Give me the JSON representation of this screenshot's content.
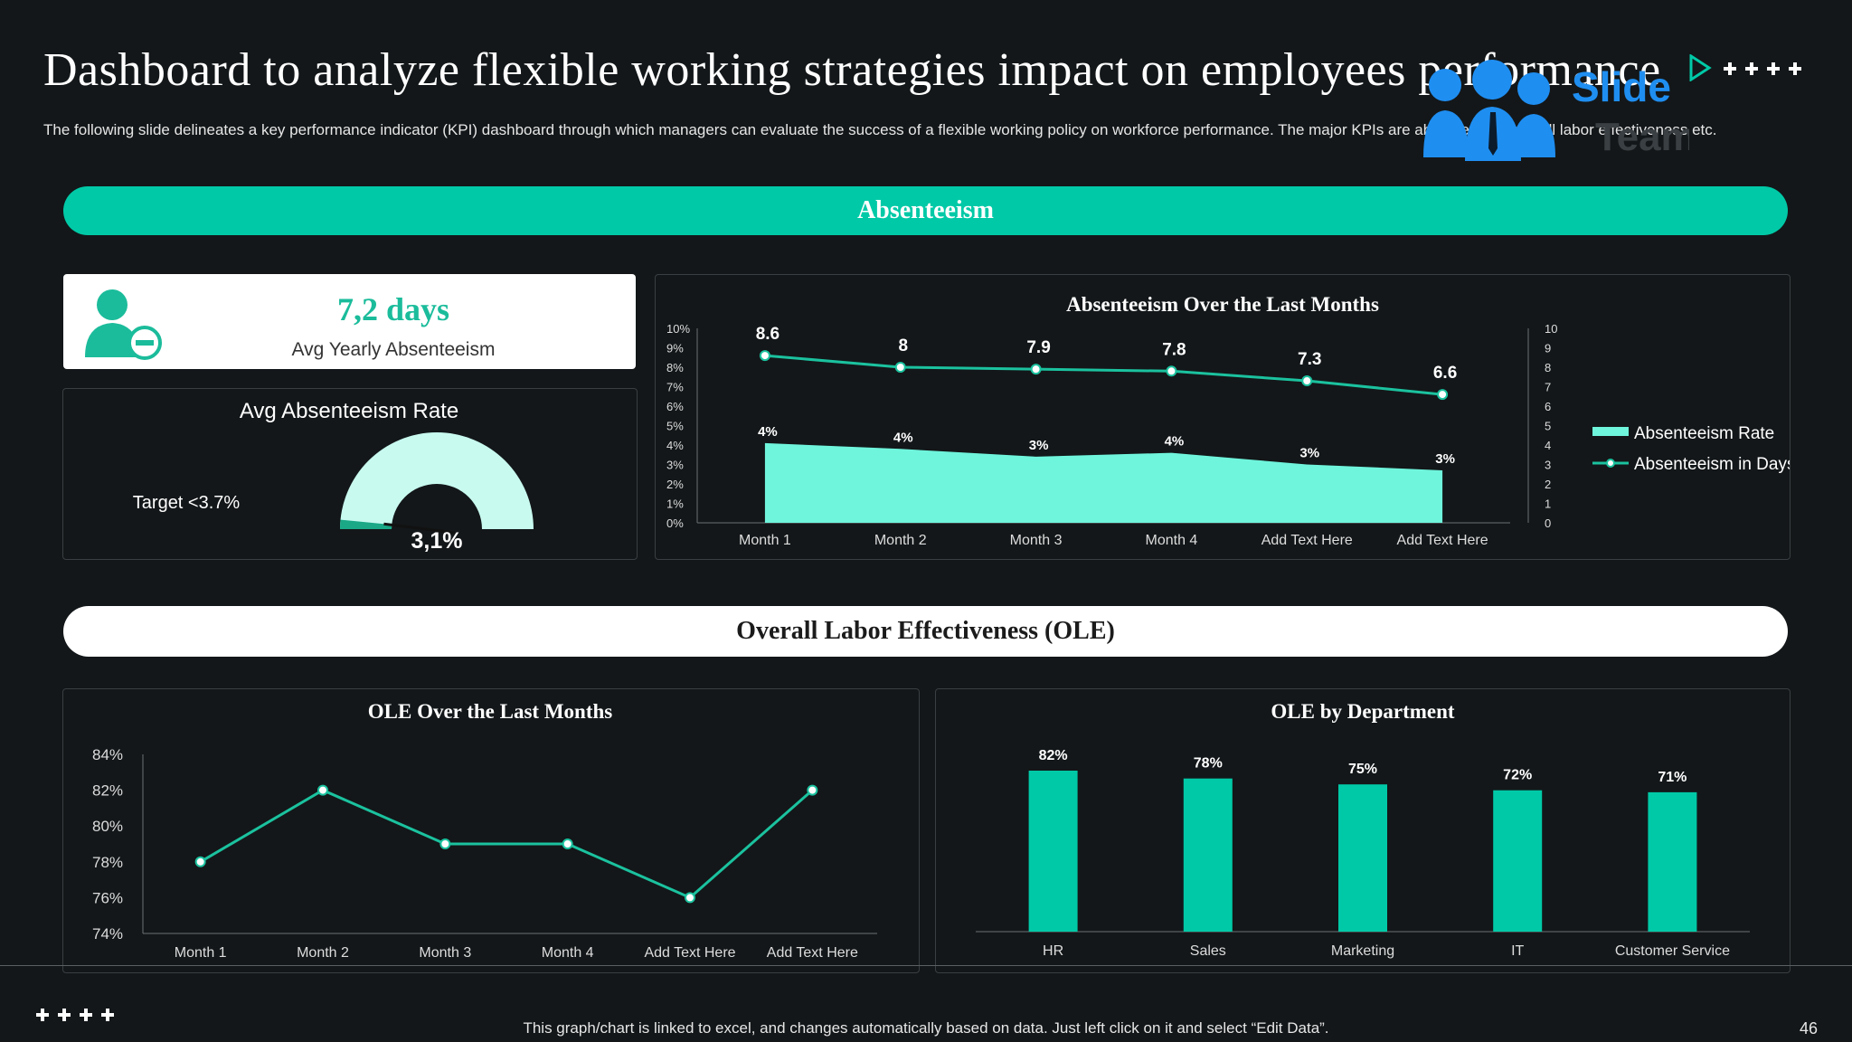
{
  "header": {
    "title": "Dashboard to analyze flexible working strategies impact on employees performance",
    "subtitle": "The following slide delineates a key performance indicator (KPI) dashboard through which managers can evaluate the success of a flexible working policy on workforce performance. The major KPIs are absenteeism, overall labor effectiveness etc."
  },
  "logo": {
    "word1": "Slide",
    "word2": "Team"
  },
  "sections": {
    "absenteeism": "Absenteeism",
    "ole": "Overall Labor Effectiveness (OLE)"
  },
  "kpi": {
    "value": "7,2 days",
    "label": "Avg Yearly Absenteeism"
  },
  "gauge": {
    "title": "Avg Absenteeism Rate",
    "target_label": "Target  <3.7%",
    "value_label": "3,1%",
    "value": 3.1,
    "max": 100,
    "colors": {
      "fill": "#1aa887",
      "track": "#c8faf0"
    }
  },
  "footer": {
    "note": "This graph/chart is linked to excel, and changes automatically based on data. Just left click on it and select “Edit Data”.",
    "page": "46"
  },
  "chart_data": [
    {
      "id": "absenteeism-over-months",
      "type": "area",
      "title": "Absenteeism Over the Last Months",
      "categories": [
        "Month 1",
        "Month 2",
        "Month 3",
        "Month 4",
        "Add Text Here",
        "Add Text Here"
      ],
      "y_left_ticks": [
        "0%",
        "1%",
        "2%",
        "3%",
        "4%",
        "5%",
        "6%",
        "7%",
        "8%",
        "9%",
        "10%"
      ],
      "y_right_ticks": [
        "0",
        "1",
        "2",
        "3",
        "4",
        "5",
        "6",
        "7",
        "8",
        "9",
        "10"
      ],
      "ylim": [
        0,
        10
      ],
      "legend_position": "right",
      "series": [
        {
          "name": "Absenteeism Rate",
          "type": "area",
          "axis": "left",
          "values": [
            4.1,
            3.8,
            3.4,
            3.6,
            3.0,
            2.7
          ],
          "labels": [
            "4%",
            "4%",
            "3%",
            "4%",
            "3%",
            "3%"
          ],
          "color": "#6ff5dc"
        },
        {
          "name": "Absenteeism in Days",
          "type": "line",
          "axis": "right",
          "values": [
            8.6,
            8,
            7.9,
            7.8,
            7.3,
            6.6
          ],
          "labels": [
            "8.6",
            "8",
            "7.9",
            "7.8",
            "7.3",
            "6.6"
          ],
          "color": "#1bc29f"
        }
      ]
    },
    {
      "id": "ole-over-months",
      "type": "line",
      "title": "OLE Over the Last Months",
      "categories": [
        "Month 1",
        "Month 2",
        "Month 3",
        "Month 4",
        "Add Text Here",
        "Add Text Here"
      ],
      "values": [
        78,
        82,
        79,
        79,
        76,
        82
      ],
      "y_ticks": [
        "74%",
        "76%",
        "78%",
        "80%",
        "82%",
        "84%"
      ],
      "ylim": [
        74,
        84
      ],
      "color": "#1bc29f"
    },
    {
      "id": "ole-by-department",
      "type": "bar",
      "title": "OLE by Department",
      "categories": [
        "HR",
        "Sales",
        "Marketing",
        "IT",
        "Customer Service"
      ],
      "values": [
        82,
        78,
        75,
        72,
        71
      ],
      "labels": [
        "82%",
        "78%",
        "75%",
        "72%",
        "71%"
      ],
      "color": "#00c9a7"
    }
  ]
}
